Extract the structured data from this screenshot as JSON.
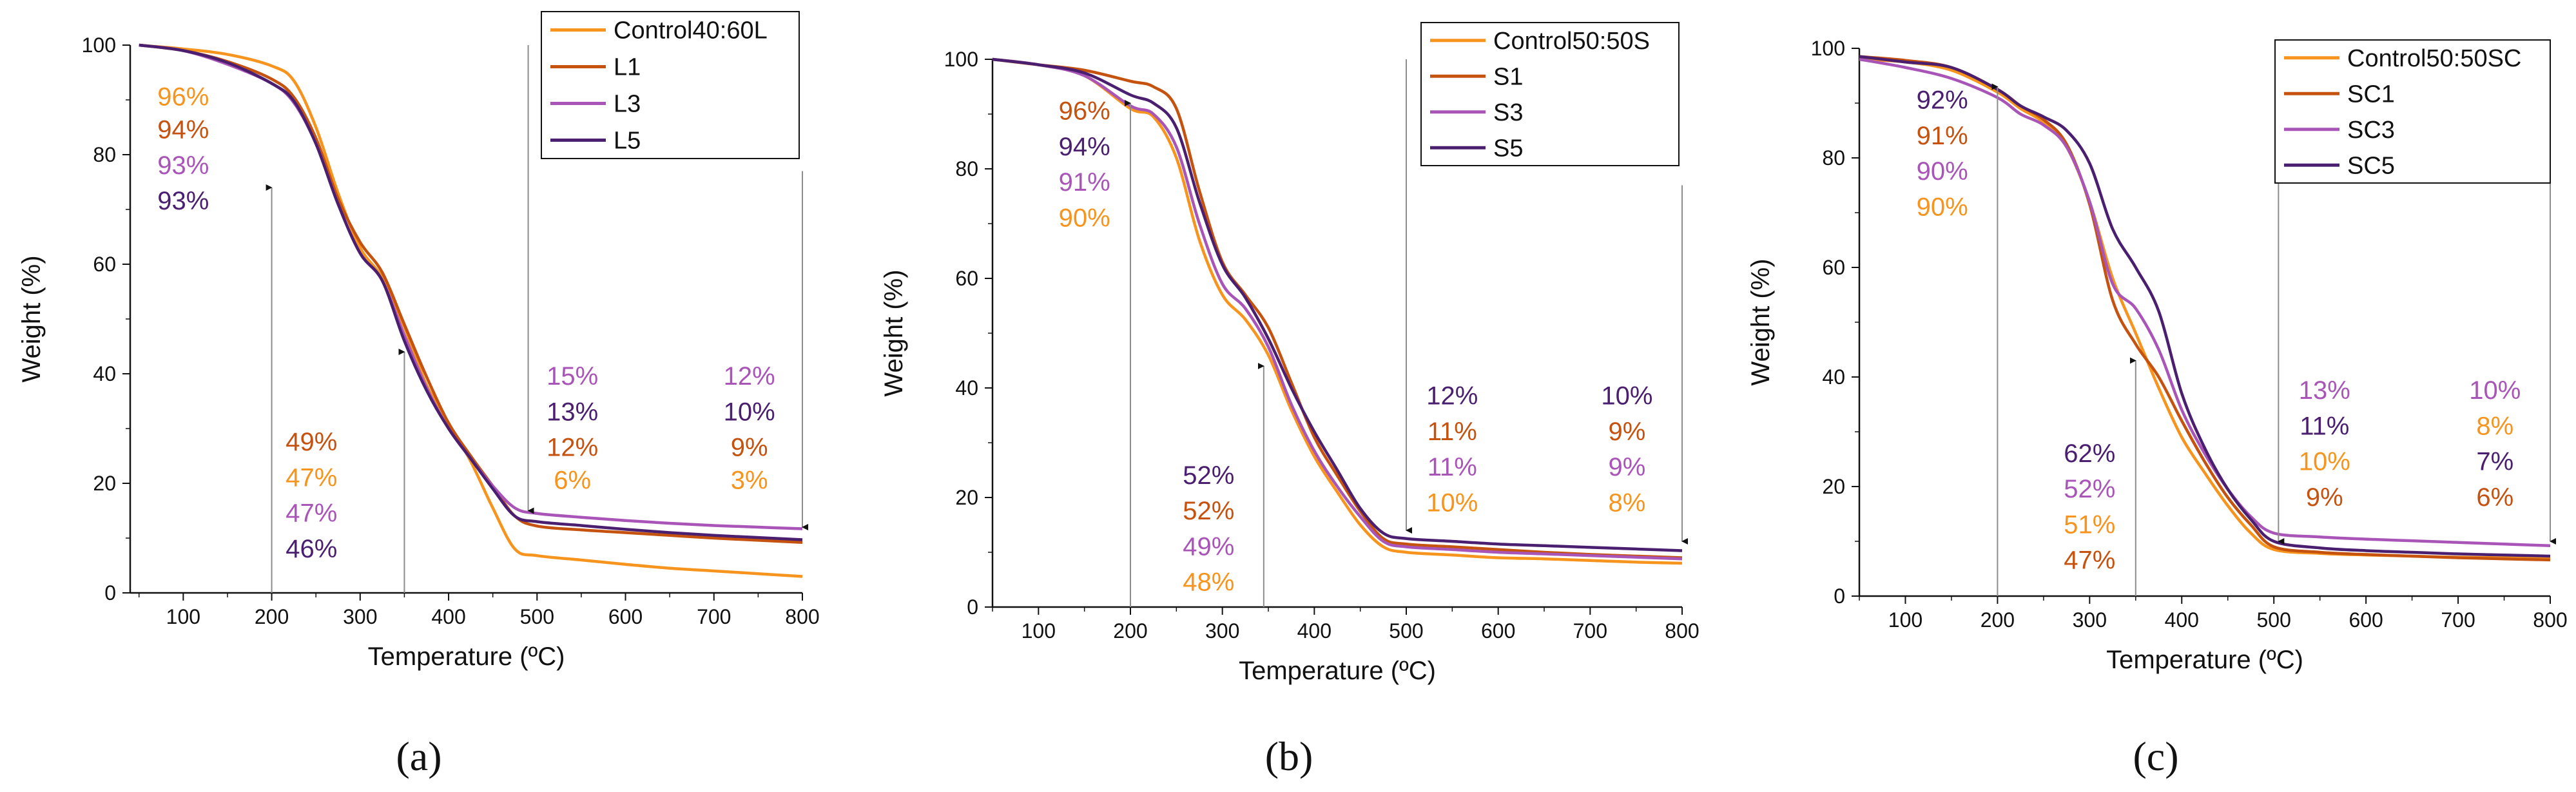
{
  "colors": {
    "orange": "#f7941d",
    "brown": "#c5520f",
    "purple": "#a955b8",
    "dark_purple": "#4b1f6f",
    "axis": "#111111",
    "arrow": "#8c8c8c"
  },
  "chart_data": [
    {
      "type": "line",
      "panel_label": "(a)",
      "xlabel": "Temperature (ºC)",
      "ylabel": "Weight (%)",
      "xlim": [
        40,
        800
      ],
      "ylim": [
        0,
        100
      ],
      "xticks": [
        100,
        200,
        300,
        400,
        500,
        600,
        700,
        800
      ],
      "yticks": [
        0,
        20,
        40,
        60,
        80,
        100
      ],
      "legend_position": "top-right",
      "series": [
        {
          "name": "Control40:60L",
          "color": "orange",
          "x": [
            50,
            100,
            150,
            200,
            225,
            250,
            275,
            300,
            325,
            350,
            375,
            400,
            425,
            450,
            475,
            500,
            550,
            600,
            650,
            700,
            750,
            800
          ],
          "y": [
            100,
            99.3,
            98.3,
            96.2,
            93.5,
            85,
            73,
            63,
            57.5,
            48.5,
            38,
            31,
            24,
            15.5,
            8,
            6.8,
            6,
            5.2,
            4.5,
            4,
            3.5,
            3
          ]
        },
        {
          "name": "L1",
          "color": "brown",
          "x": [
            50,
            100,
            150,
            200,
            225,
            250,
            275,
            300,
            325,
            350,
            375,
            400,
            425,
            450,
            475,
            500,
            550,
            600,
            650,
            700,
            750,
            800
          ],
          "y": [
            100,
            99,
            97,
            93.8,
            90.5,
            83,
            72,
            64,
            58.5,
            49,
            39.5,
            31,
            25,
            19.5,
            14,
            12.2,
            11.5,
            11,
            10.5,
            10,
            9.6,
            9.2
          ]
        },
        {
          "name": "L3",
          "color": "purple",
          "x": [
            50,
            100,
            150,
            200,
            225,
            250,
            275,
            300,
            325,
            350,
            375,
            400,
            425,
            450,
            475,
            500,
            550,
            600,
            650,
            700,
            750,
            800
          ],
          "y": [
            100,
            99,
            96.5,
            93,
            89.5,
            82,
            71,
            62,
            57,
            47,
            37.5,
            30,
            24.5,
            19.5,
            15.5,
            14.5,
            13.8,
            13.2,
            12.7,
            12.3,
            12,
            11.7
          ]
        },
        {
          "name": "L5",
          "color": "dark_purple",
          "x": [
            50,
            100,
            150,
            200,
            225,
            250,
            275,
            300,
            325,
            350,
            375,
            400,
            425,
            450,
            475,
            500,
            550,
            600,
            650,
            700,
            750,
            800
          ],
          "y": [
            100,
            99,
            96.8,
            93,
            89.8,
            82,
            71,
            62,
            57,
            46,
            37,
            30,
            24.5,
            19,
            14,
            13,
            12.3,
            11.6,
            11,
            10.5,
            10.1,
            9.7
          ]
        }
      ],
      "arrows": [
        {
          "x": 200,
          "from_y": 0,
          "to_y": 74
        },
        {
          "x": 350,
          "from_y": 0,
          "to_y": 44
        },
        {
          "x": 490,
          "from_y": 100,
          "to_y": 15
        },
        {
          "x": 800,
          "from_y": 77,
          "to_y": 12
        }
      ],
      "annotations": [
        {
          "text": "96%",
          "color": "orange",
          "x": 100,
          "y": 89
        },
        {
          "text": "94%",
          "color": "brown",
          "x": 100,
          "y": 83
        },
        {
          "text": "93%",
          "color": "purple",
          "x": 100,
          "y": 76.5
        },
        {
          "text": "93%",
          "color": "dark_purple",
          "x": 100,
          "y": 70
        },
        {
          "text": "49%",
          "color": "brown",
          "x": 245,
          "y": 26
        },
        {
          "text": "47%",
          "color": "orange",
          "x": 245,
          "y": 19.5
        },
        {
          "text": "47%",
          "color": "purple",
          "x": 245,
          "y": 13
        },
        {
          "text": "46%",
          "color": "dark_purple",
          "x": 245,
          "y": 6.5
        },
        {
          "text": "15%",
          "color": "purple",
          "x": 540,
          "y": 38
        },
        {
          "text": "13%",
          "color": "dark_purple",
          "x": 540,
          "y": 31.5
        },
        {
          "text": "12%",
          "color": "brown",
          "x": 540,
          "y": 25
        },
        {
          "text": "6%",
          "color": "orange",
          "x": 540,
          "y": 19
        },
        {
          "text": "12%",
          "color": "purple",
          "x": 740,
          "y": 38
        },
        {
          "text": "10%",
          "color": "dark_purple",
          "x": 740,
          "y": 31.5
        },
        {
          "text": "9%",
          "color": "brown",
          "x": 740,
          "y": 25
        },
        {
          "text": "3%",
          "color": "orange",
          "x": 740,
          "y": 19
        }
      ]
    },
    {
      "type": "line",
      "panel_label": "(b)",
      "xlabel": "Temperature (ºC)",
      "ylabel": "Weight (%)",
      "xlim": [
        50,
        800
      ],
      "ylim": [
        0,
        100
      ],
      "xticks": [
        100,
        200,
        300,
        400,
        500,
        600,
        700,
        800
      ],
      "yticks": [
        0,
        20,
        40,
        60,
        80,
        100
      ],
      "legend_position": "top-right",
      "series": [
        {
          "name": "Control50:50S",
          "color": "orange",
          "x": [
            50,
            100,
            150,
            200,
            225,
            250,
            275,
            300,
            325,
            350,
            375,
            400,
            425,
            450,
            475,
            500,
            550,
            600,
            650,
            700,
            750,
            800
          ],
          "y": [
            100,
            99,
            97,
            91,
            89.5,
            82,
            67,
            57,
            52.5,
            46,
            36,
            27.5,
            21,
            15,
            11,
            10,
            9.5,
            9,
            8.8,
            8.5,
            8.2,
            8
          ]
        },
        {
          "name": "S1",
          "color": "brown",
          "x": [
            50,
            100,
            150,
            200,
            225,
            250,
            275,
            300,
            325,
            350,
            375,
            400,
            425,
            450,
            475,
            500,
            550,
            600,
            650,
            700,
            750,
            800
          ],
          "y": [
            100,
            99,
            98,
            96,
            95,
            91,
            76,
            63,
            57,
            51,
            41,
            31,
            24,
            17.5,
            12.5,
            11.5,
            11,
            10.5,
            10,
            9.6,
            9.3,
            9
          ]
        },
        {
          "name": "S3",
          "color": "purple",
          "x": [
            50,
            100,
            150,
            200,
            225,
            250,
            275,
            300,
            325,
            350,
            375,
            400,
            425,
            450,
            475,
            500,
            550,
            600,
            650,
            700,
            750,
            800
          ],
          "y": [
            100,
            99,
            97,
            91.5,
            90,
            84,
            70,
            59,
            54.5,
            47.5,
            37,
            28.5,
            22,
            16.5,
            12,
            11,
            10.5,
            10,
            9.7,
            9.4,
            9.1,
            8.8
          ]
        },
        {
          "name": "S5",
          "color": "dark_purple",
          "x": [
            50,
            100,
            150,
            200,
            225,
            250,
            275,
            300,
            325,
            350,
            375,
            400,
            425,
            450,
            475,
            500,
            550,
            600,
            650,
            700,
            750,
            800
          ],
          "y": [
            100,
            99,
            97.5,
            93.5,
            92,
            87.5,
            74,
            62.5,
            56.5,
            49,
            40,
            32,
            25,
            18,
            13.5,
            12.5,
            12,
            11.5,
            11.2,
            10.9,
            10.6,
            10.3
          ]
        }
      ],
      "arrows": [
        {
          "x": 200,
          "from_y": 0,
          "to_y": 92
        },
        {
          "x": 345,
          "from_y": 0,
          "to_y": 44
        },
        {
          "x": 500,
          "from_y": 100,
          "to_y": 14
        },
        {
          "x": 800,
          "from_y": 77,
          "to_y": 12
        }
      ],
      "annotations": [
        {
          "text": "96%",
          "color": "brown",
          "x": 150,
          "y": 89
        },
        {
          "text": "94%",
          "color": "dark_purple",
          "x": 150,
          "y": 82.5
        },
        {
          "text": "91%",
          "color": "purple",
          "x": 150,
          "y": 76
        },
        {
          "text": "90%",
          "color": "orange",
          "x": 150,
          "y": 69.5
        },
        {
          "text": "52%",
          "color": "dark_purple",
          "x": 285,
          "y": 22.5
        },
        {
          "text": "52%",
          "color": "brown",
          "x": 285,
          "y": 16
        },
        {
          "text": "49%",
          "color": "purple",
          "x": 285,
          "y": 9.5
        },
        {
          "text": "48%",
          "color": "orange",
          "x": 285,
          "y": 3
        },
        {
          "text": "12%",
          "color": "dark_purple",
          "x": 550,
          "y": 37
        },
        {
          "text": "11%",
          "color": "brown",
          "x": 550,
          "y": 30.5
        },
        {
          "text": "11%",
          "color": "purple",
          "x": 550,
          "y": 24
        },
        {
          "text": "10%",
          "color": "orange",
          "x": 550,
          "y": 17.5
        },
        {
          "text": "10%",
          "color": "dark_purple",
          "x": 740,
          "y": 37
        },
        {
          "text": "9%",
          "color": "brown",
          "x": 740,
          "y": 30.5
        },
        {
          "text": "9%",
          "color": "purple",
          "x": 740,
          "y": 24
        },
        {
          "text": "8%",
          "color": "orange",
          "x": 740,
          "y": 17.5
        }
      ]
    },
    {
      "type": "line",
      "panel_label": "(c)",
      "xlabel": "Temperature (ºC)",
      "ylabel": "Weight (%)",
      "xlim": [
        50,
        800
      ],
      "ylim": [
        0,
        100
      ],
      "xticks": [
        100,
        200,
        300,
        400,
        500,
        600,
        700,
        800
      ],
      "yticks": [
        0,
        20,
        40,
        60,
        80,
        100
      ],
      "legend_position": "top-right",
      "series": [
        {
          "name": "Control50:50SC",
          "color": "orange",
          "x": [
            50,
            100,
            150,
            200,
            225,
            250,
            275,
            300,
            325,
            350,
            375,
            400,
            425,
            450,
            475,
            500,
            550,
            600,
            650,
            700,
            750,
            800
          ],
          "y": [
            98,
            97.5,
            96,
            92,
            89,
            86.5,
            82,
            72,
            58,
            48,
            38,
            29,
            22.5,
            16.5,
            11.5,
            8.5,
            7.8,
            7.5,
            7.3,
            7.1,
            7,
            6.8
          ]
        },
        {
          "name": "SC1",
          "color": "brown",
          "x": [
            50,
            100,
            150,
            200,
            225,
            250,
            275,
            300,
            325,
            350,
            375,
            400,
            425,
            450,
            475,
            500,
            550,
            600,
            650,
            700,
            750,
            800
          ],
          "y": [
            98.5,
            97.8,
            96.5,
            92.5,
            89.5,
            87,
            82.5,
            71.5,
            54,
            46,
            40,
            32,
            24.5,
            18,
            13,
            9,
            8,
            7.6,
            7.3,
            7,
            6.8,
            6.6
          ]
        },
        {
          "name": "SC3",
          "color": "purple",
          "x": [
            50,
            100,
            150,
            200,
            225,
            250,
            275,
            300,
            325,
            350,
            375,
            400,
            425,
            450,
            475,
            500,
            550,
            600,
            650,
            700,
            750,
            800
          ],
          "y": [
            98,
            96.5,
            94.5,
            91,
            88,
            86,
            82,
            72,
            57,
            52.5,
            45,
            34,
            26,
            19.5,
            14.5,
            11.5,
            10.8,
            10.4,
            10.1,
            9.8,
            9.5,
            9.2
          ]
        },
        {
          "name": "SC5",
          "color": "dark_purple",
          "x": [
            50,
            100,
            150,
            200,
            225,
            250,
            275,
            300,
            325,
            350,
            375,
            400,
            425,
            450,
            475,
            500,
            550,
            600,
            650,
            700,
            750,
            800
          ],
          "y": [
            98.5,
            97.5,
            96.5,
            92.5,
            89.5,
            87.5,
            85,
            79,
            67,
            60,
            52,
            37,
            27,
            19.5,
            14,
            10,
            8.8,
            8.3,
            8,
            7.7,
            7.5,
            7.3
          ]
        }
      ],
      "arrows": [
        {
          "x": 200,
          "from_y": 0,
          "to_y": 93
        },
        {
          "x": 350,
          "from_y": 0,
          "to_y": 43
        },
        {
          "x": 505,
          "from_y": 100,
          "to_y": 10
        },
        {
          "x": 800,
          "from_y": 77,
          "to_y": 10
        }
      ],
      "annotations": [
        {
          "text": "92%",
          "color": "dark_purple",
          "x": 140,
          "y": 89
        },
        {
          "text": "91%",
          "color": "brown",
          "x": 140,
          "y": 82.5
        },
        {
          "text": "90%",
          "color": "purple",
          "x": 140,
          "y": 76
        },
        {
          "text": "90%",
          "color": "orange",
          "x": 140,
          "y": 69.5
        },
        {
          "text": "62%",
          "color": "dark_purple",
          "x": 300,
          "y": 24.5
        },
        {
          "text": "52%",
          "color": "purple",
          "x": 300,
          "y": 18
        },
        {
          "text": "51%",
          "color": "orange",
          "x": 300,
          "y": 11.5
        },
        {
          "text": "47%",
          "color": "brown",
          "x": 300,
          "y": 5
        },
        {
          "text": "13%",
          "color": "purple",
          "x": 555,
          "y": 36
        },
        {
          "text": "11%",
          "color": "dark_purple",
          "x": 555,
          "y": 29.5
        },
        {
          "text": "10%",
          "color": "orange",
          "x": 555,
          "y": 23
        },
        {
          "text": "9%",
          "color": "brown",
          "x": 555,
          "y": 16.5
        },
        {
          "text": "10%",
          "color": "purple",
          "x": 740,
          "y": 36
        },
        {
          "text": "8%",
          "color": "orange",
          "x": 740,
          "y": 29.5
        },
        {
          "text": "7%",
          "color": "dark_purple",
          "x": 740,
          "y": 23
        },
        {
          "text": "6%",
          "color": "brown",
          "x": 740,
          "y": 16.5
        }
      ]
    }
  ]
}
